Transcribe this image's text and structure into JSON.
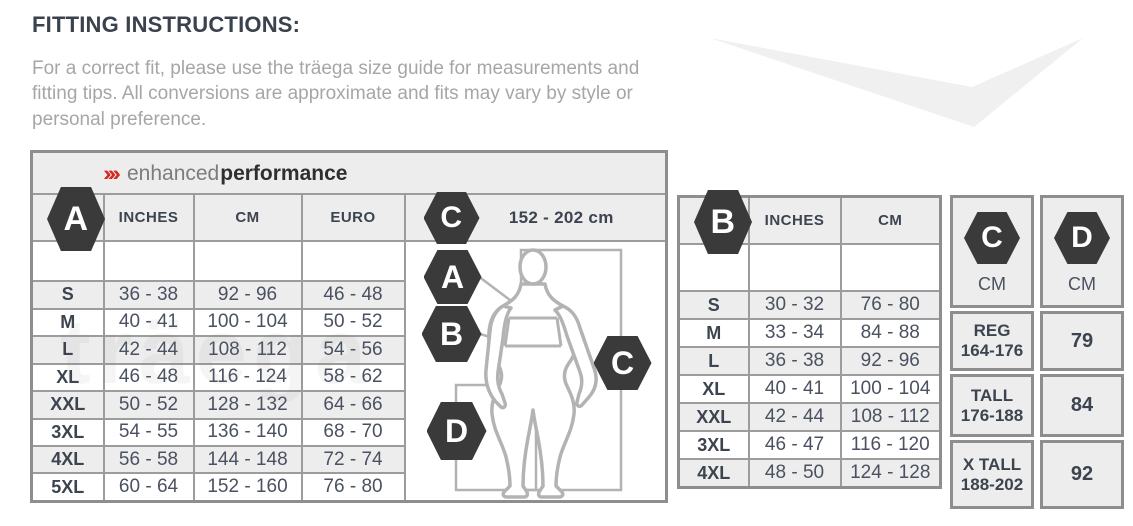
{
  "page": {
    "title": "FITTING INSTRUCTIONS:",
    "description": "For a correct fit, please use the träega size guide for measurements and fitting tips. All conversions are approximate and fits may vary by style or personal preference."
  },
  "brand": {
    "chevrons": "›››",
    "name_light": "enhanced",
    "name_bold": "performance",
    "watermark": "träega"
  },
  "colors": {
    "accent_red": "#d6281e",
    "hexagon_dark": "#3a3a3a",
    "border_gray": "#8e8e8e",
    "cell_gray": "#ededed",
    "header_text": "#3c4450",
    "body_text": "#4a5160",
    "figure_outline": "#b3b3b3",
    "swoosh_gray": "#f0f0f0"
  },
  "left_table": {
    "marker": "A",
    "columns": [
      "INCHES",
      "CM",
      "EURO"
    ],
    "height_marker": {
      "label": "C",
      "range": "152 - 202 cm"
    },
    "rows": [
      {
        "size": "S",
        "inches": "36 - 38",
        "cm": "92 - 96",
        "euro": "46 - 48"
      },
      {
        "size": "M",
        "inches": "40 - 41",
        "cm": "100 - 104",
        "euro": "50 - 52"
      },
      {
        "size": "L",
        "inches": "42 - 44",
        "cm": "108 - 112",
        "euro": "54 - 56"
      },
      {
        "size": "XL",
        "inches": "46 - 48",
        "cm": "116 - 124",
        "euro": "58 - 62"
      },
      {
        "size": "XXL",
        "inches": "50 - 52",
        "cm": "128 - 132",
        "euro": "64 - 66"
      },
      {
        "size": "3XL",
        "inches": "54 - 55",
        "cm": "136 - 140",
        "euro": "68 - 70"
      },
      {
        "size": "4XL",
        "inches": "56 - 58",
        "cm": "144 - 148",
        "euro": "72 - 74"
      },
      {
        "size": "5XL",
        "inches": "60 - 64",
        "cm": "152 - 160",
        "euro": "76 - 80"
      }
    ]
  },
  "diagram": {
    "markers": [
      "A",
      "B",
      "C",
      "D"
    ]
  },
  "right_table": {
    "marker": "B",
    "columns": [
      "INCHES",
      "CM"
    ],
    "rows": [
      {
        "size": "S",
        "inches": "30 - 32",
        "cm": "76 - 80"
      },
      {
        "size": "M",
        "inches": "33 - 34",
        "cm": "84 - 88"
      },
      {
        "size": "L",
        "inches": "36 - 38",
        "cm": "92 - 96"
      },
      {
        "size": "XL",
        "inches": "40 - 41",
        "cm": "100 - 104"
      },
      {
        "size": "XXL",
        "inches": "42 - 44",
        "cm": "108 - 112"
      },
      {
        "size": "3XL",
        "inches": "46 - 47",
        "cm": "116 - 120"
      },
      {
        "size": "4XL",
        "inches": "48 - 50",
        "cm": "124 - 128"
      }
    ],
    "c_column": {
      "label": "C",
      "unit": "CM",
      "entries": [
        {
          "name": "REG",
          "range": "164-176"
        },
        {
          "name": "TALL",
          "range": "176-188"
        },
        {
          "name": "X TALL",
          "range": "188-202"
        }
      ]
    },
    "d_column": {
      "label": "D",
      "unit": "CM",
      "values": [
        "79",
        "84",
        "92"
      ]
    }
  }
}
